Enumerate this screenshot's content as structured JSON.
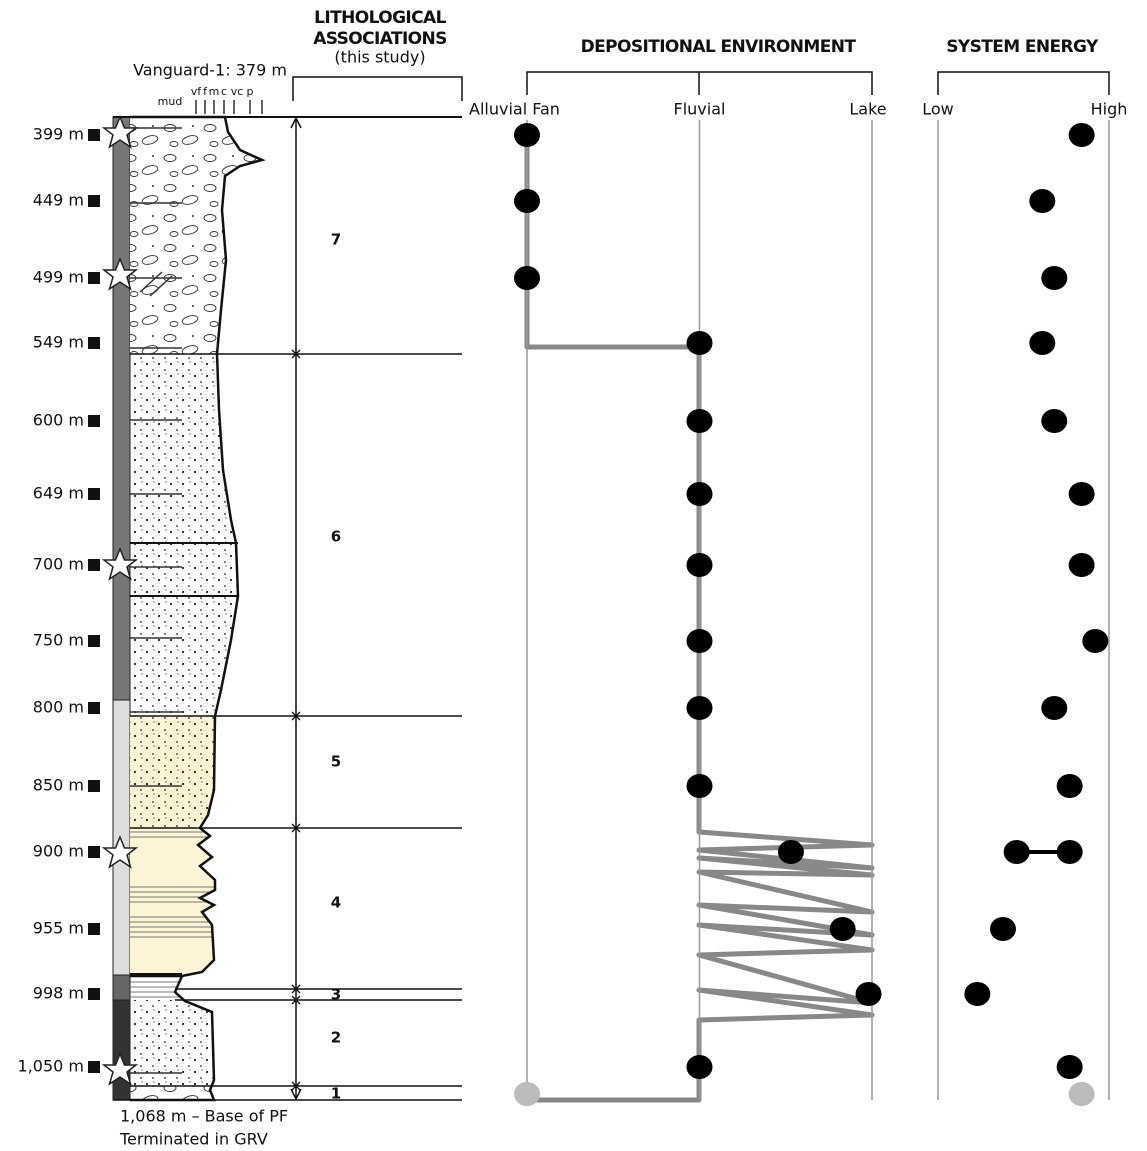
{
  "chart_data": {
    "type": "stratigraphic-log",
    "well_label": "Vanguard-1: 379 m",
    "grain_sizes": [
      "mud",
      "vf",
      "f",
      "m",
      "c",
      "vc",
      "p"
    ],
    "lithology_title": [
      "LITHOLOGICAL",
      "ASSOCIATIONS",
      "(this study)"
    ],
    "environment_title": "DEPOSITIONAL ENVIRONMENT",
    "energy_title": "SYSTEM ENERGY",
    "depth_labels": [
      "399 m",
      "449 m",
      "499 m",
      "549 m",
      "600 m",
      "649 m",
      "700 m",
      "750 m",
      "800 m",
      "850 m",
      "900 m",
      "955 m",
      "998 m",
      "1,050 m"
    ],
    "units": [
      "7",
      "6",
      "5",
      "4",
      "3",
      "2",
      "1"
    ],
    "environment_ticks": [
      {
        "value": 0,
        "label": "Alluvial Fan"
      },
      {
        "value": 1,
        "label": "Fluvial"
      },
      {
        "value": 2,
        "label": "Lake"
      }
    ],
    "energy_ticks": [
      {
        "value": 0,
        "label": "Low"
      },
      {
        "value": 1,
        "label": "High"
      }
    ],
    "environment": [
      0,
      0,
      0,
      1,
      1,
      1,
      1,
      1,
      1,
      1,
      1.53,
      1.83,
      1.98,
      1
    ],
    "energy": [
      0.84,
      0.61,
      0.68,
      0.61,
      0.68,
      0.84,
      0.84,
      0.92,
      0.68,
      0.77,
      [
        0.46,
        0.77
      ],
      0.38,
      0.23,
      0.77
    ],
    "base": {
      "label": "1,068 m – Base of PF",
      "note": "Terminated in GRV",
      "environment": 0,
      "energy": 0.84
    }
  }
}
